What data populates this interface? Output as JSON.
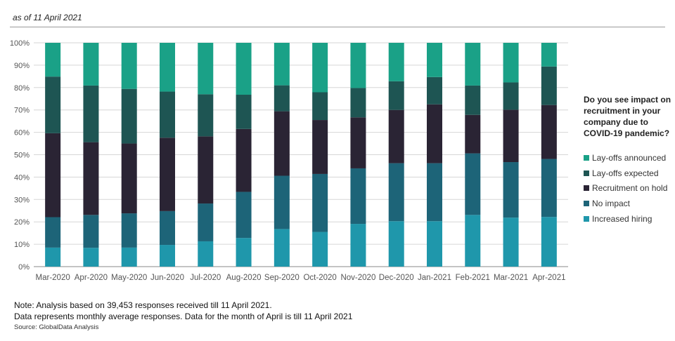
{
  "header": {
    "subtitle": "as of 11 April 2021"
  },
  "legend": {
    "title": "Do you see impact on recruitment in your company due to COVID-19 pandemic?",
    "items": [
      {
        "label": "Lay-offs announced",
        "color": "#1aa187"
      },
      {
        "label": "Lay-offs expected",
        "color": "#1e5553"
      },
      {
        "label": "Recruitment on hold",
        "color": "#2a2434"
      },
      {
        "label": "No impact",
        "color": "#1d6478"
      },
      {
        "label": "Increased hiring",
        "color": "#1f97ab"
      }
    ]
  },
  "footer": {
    "note1": "Note: Analysis based on 39,453 responses received till 11 April 2021.",
    "note2": "Data represents monthly average responses. Data for the month of April is till 11 April 2021",
    "source": "Source: GlobalData Analysis"
  },
  "chart_data": {
    "type": "bar",
    "stacked": true,
    "percent": true,
    "categories": [
      "Mar-2020",
      "Apr-2020",
      "May-2020",
      "Jun-2020",
      "Jul-2020",
      "Aug-2020",
      "Sep-2020",
      "Oct-2020",
      "Nov-2020",
      "Dec-2020",
      "Jan-2021",
      "Feb-2021",
      "Mar-2021",
      "Apr-2021"
    ],
    "ylim": [
      0,
      100
    ],
    "yticks": [
      "0%",
      "10%",
      "20%",
      "30%",
      "40%",
      "50%",
      "60%",
      "70%",
      "80%",
      "90%",
      "100%"
    ],
    "grid": true,
    "legend_position": "right",
    "series": [
      {
        "name": "Increased hiring",
        "color": "#1f97ab",
        "values": [
          8.5,
          8.4,
          8.5,
          9.7,
          11.3,
          12.8,
          16.8,
          15.5,
          19.1,
          20.3,
          20.3,
          23.1,
          21.9,
          22.2
        ]
      },
      {
        "name": "No impact",
        "color": "#1d6478",
        "values": [
          13.6,
          14.7,
          15.3,
          15.1,
          16.9,
          20.6,
          23.8,
          25.9,
          24.8,
          25.9,
          25.9,
          27.5,
          24.8,
          25.9
        ]
      },
      {
        "name": "Recruitment on hold",
        "color": "#2a2434",
        "values": [
          37.5,
          32.5,
          31.2,
          32.8,
          30.0,
          28.1,
          28.8,
          24.1,
          22.8,
          23.8,
          26.3,
          17.2,
          23.4,
          24.1
        ]
      },
      {
        "name": "Lay-offs expected",
        "color": "#1e5553",
        "values": [
          25.3,
          25.3,
          24.4,
          20.6,
          18.8,
          15.3,
          11.6,
          12.4,
          13.1,
          12.8,
          12.2,
          13.1,
          12.2,
          17.2
        ]
      },
      {
        "name": "Lay-offs announced",
        "color": "#1aa187",
        "values": [
          15.1,
          19.1,
          20.6,
          21.8,
          23.0,
          23.2,
          19.0,
          22.1,
          20.2,
          17.2,
          15.3,
          19.1,
          17.7,
          10.6
        ]
      }
    ]
  }
}
